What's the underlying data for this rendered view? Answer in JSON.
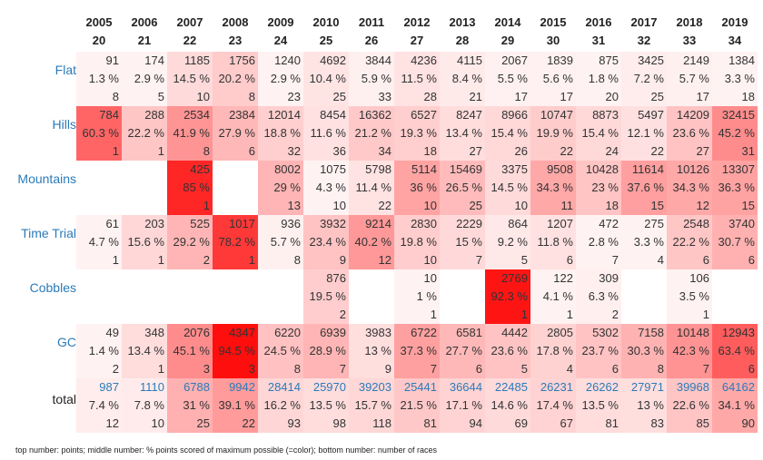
{
  "years": [
    [
      "2005",
      "20"
    ],
    [
      "2006",
      "21"
    ],
    [
      "2007",
      "22"
    ],
    [
      "2008",
      "23"
    ],
    [
      "2009",
      "24"
    ],
    [
      "2010",
      "25"
    ],
    [
      "2011",
      "26"
    ],
    [
      "2012",
      "27"
    ],
    [
      "2013",
      "28"
    ],
    [
      "2014",
      "29"
    ],
    [
      "2015",
      "30"
    ],
    [
      "2016",
      "31"
    ],
    [
      "2017",
      "32"
    ],
    [
      "2018",
      "33"
    ],
    [
      "2019",
      "34"
    ]
  ],
  "rows": [
    {
      "label": "Flat",
      "link": true,
      "cells": [
        [
          "91",
          "1.3 %",
          "8"
        ],
        [
          "174",
          "2.9 %",
          "5"
        ],
        [
          "1185",
          "14.5 %",
          "10"
        ],
        [
          "1756",
          "20.2 %",
          "8"
        ],
        [
          "1240",
          "2.9 %",
          "23"
        ],
        [
          "4692",
          "10.4 %",
          "25"
        ],
        [
          "3844",
          "5.9 %",
          "33"
        ],
        [
          "4236",
          "11.5 %",
          "28"
        ],
        [
          "4115",
          "8.4 %",
          "21"
        ],
        [
          "2067",
          "5.5 %",
          "17"
        ],
        [
          "1839",
          "5.6 %",
          "17"
        ],
        [
          "875",
          "1.8 %",
          "20"
        ],
        [
          "3425",
          "7.2 %",
          "25"
        ],
        [
          "2149",
          "5.7 %",
          "17"
        ],
        [
          "1384",
          "3.3 %",
          "18"
        ]
      ]
    },
    {
      "label": "Hills",
      "link": true,
      "cells": [
        [
          "784",
          "60.3 %",
          "1"
        ],
        [
          "288",
          "22.2 %",
          "1"
        ],
        [
          "2534",
          "41.9 %",
          "8"
        ],
        [
          "2384",
          "27.9 %",
          "6"
        ],
        [
          "12014",
          "18.8 %",
          "32"
        ],
        [
          "8454",
          "11.6 %",
          "36"
        ],
        [
          "16362",
          "21.2 %",
          "34"
        ],
        [
          "6527",
          "19.3 %",
          "18"
        ],
        [
          "8247",
          "13.4 %",
          "27"
        ],
        [
          "8966",
          "15.4 %",
          "26"
        ],
        [
          "10747",
          "19.9 %",
          "22"
        ],
        [
          "8873",
          "15.4 %",
          "24"
        ],
        [
          "5497",
          "12.1 %",
          "22"
        ],
        [
          "14209",
          "23.6 %",
          "27"
        ],
        [
          "32415",
          "45.2 %",
          "31"
        ]
      ]
    },
    {
      "label": "Mountains",
      "link": true,
      "cells": [
        null,
        null,
        [
          "425",
          "85 %",
          "1"
        ],
        null,
        [
          "8002",
          "29 %",
          "13"
        ],
        [
          "1075",
          "4.3 %",
          "10"
        ],
        [
          "5798",
          "11.4 %",
          "22"
        ],
        [
          "5114",
          "36 %",
          "10"
        ],
        [
          "15469",
          "26.5 %",
          "25"
        ],
        [
          "3375",
          "14.5 %",
          "10"
        ],
        [
          "9508",
          "34.3 %",
          "11"
        ],
        [
          "10428",
          "23 %",
          "18"
        ],
        [
          "11614",
          "37.6 %",
          "15"
        ],
        [
          "10126",
          "34.3 %",
          "12"
        ],
        [
          "13307",
          "36.3 %",
          "15"
        ]
      ]
    },
    {
      "label": "Time Trial",
      "link": true,
      "cells": [
        [
          "61",
          "4.7 %",
          "1"
        ],
        [
          "203",
          "15.6 %",
          "1"
        ],
        [
          "525",
          "29.2 %",
          "2"
        ],
        [
          "1017",
          "78.2 %",
          "1"
        ],
        [
          "936",
          "5.7 %",
          "8"
        ],
        [
          "3932",
          "23.4 %",
          "9"
        ],
        [
          "9214",
          "40.2 %",
          "12"
        ],
        [
          "2830",
          "19.8 %",
          "10"
        ],
        [
          "2229",
          "15 %",
          "7"
        ],
        [
          "864",
          "9.2 %",
          "5"
        ],
        [
          "1207",
          "11.8 %",
          "6"
        ],
        [
          "472",
          "2.8 %",
          "7"
        ],
        [
          "275",
          "3.3 %",
          "4"
        ],
        [
          "2548",
          "22.2 %",
          "6"
        ],
        [
          "3740",
          "30.7 %",
          "6"
        ]
      ]
    },
    {
      "label": "Cobbles",
      "link": true,
      "cells": [
        null,
        null,
        null,
        null,
        null,
        [
          "876",
          "19.5 %",
          "2"
        ],
        null,
        [
          "10",
          "1 %",
          "1"
        ],
        null,
        [
          "2769",
          "92.3 %",
          "1"
        ],
        [
          "122",
          "4.1 %",
          "1"
        ],
        [
          "309",
          "6.3 %",
          "2"
        ],
        null,
        [
          "106",
          "3.5 %",
          "1"
        ],
        null
      ]
    },
    {
      "label": "GC",
      "link": true,
      "cells": [
        [
          "49",
          "1.4 %",
          "2"
        ],
        [
          "348",
          "13.4 %",
          "1"
        ],
        [
          "2076",
          "45.1 %",
          "3"
        ],
        [
          "4347",
          "94.5 %",
          "3"
        ],
        [
          "6220",
          "24.5 %",
          "8"
        ],
        [
          "6939",
          "28.9 %",
          "7"
        ],
        [
          "3983",
          "13 %",
          "9"
        ],
        [
          "6722",
          "37.3 %",
          "7"
        ],
        [
          "6581",
          "27.7 %",
          "6"
        ],
        [
          "4442",
          "23.6 %",
          "5"
        ],
        [
          "2805",
          "17.8 %",
          "4"
        ],
        [
          "5302",
          "23.7 %",
          "6"
        ],
        [
          "7158",
          "30.3 %",
          "8"
        ],
        [
          "10148",
          "42.3 %",
          "7"
        ],
        [
          "12943",
          "63.4 %",
          "6"
        ]
      ]
    },
    {
      "label": "total",
      "link": false,
      "total": true,
      "cells": [
        [
          "987",
          "7.4 %",
          "12"
        ],
        [
          "1110",
          "7.8 %",
          "10"
        ],
        [
          "6788",
          "31 %",
          "25"
        ],
        [
          "9942",
          "39.1 %",
          "22"
        ],
        [
          "28414",
          "16.2 %",
          "93"
        ],
        [
          "25970",
          "13.5 %",
          "98"
        ],
        [
          "39203",
          "15.7 %",
          "118"
        ],
        [
          "25441",
          "21.5 %",
          "81"
        ],
        [
          "36644",
          "17.1 %",
          "94"
        ],
        [
          "22485",
          "14.6 %",
          "69"
        ],
        [
          "26231",
          "17.4 %",
          "67"
        ],
        [
          "26262",
          "13.5 %",
          "81"
        ],
        [
          "27971",
          "13 %",
          "83"
        ],
        [
          "39968",
          "22.6 %",
          "85"
        ],
        [
          "64162",
          "34.1 %",
          "90"
        ]
      ]
    }
  ],
  "colors": {
    "link": "#2b7bb9",
    "heat": "#ff0000"
  },
  "footnote": "top number: points; middle number: % points scored of maximum possible (=color); bottom number: number of races"
}
